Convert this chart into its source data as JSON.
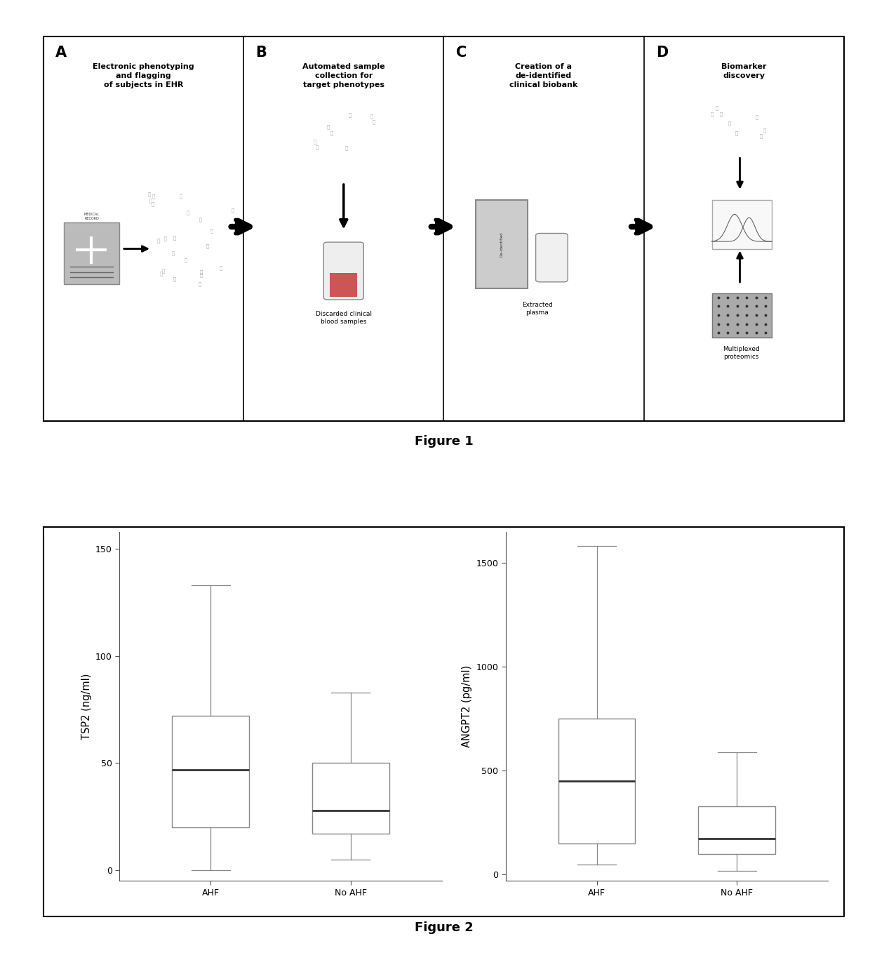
{
  "fig1": {
    "panels": [
      "A",
      "B",
      "C",
      "D"
    ],
    "panel_titles": [
      "Electronic phenotyping\nand flagging\nof subjects in EHR",
      "Automated sample\ncollection for\ntarget phenotypes",
      "Creation of a\nde-identified\nclinical biobank",
      "Biomarker\ndiscovery"
    ],
    "figure_label": "Figure 1",
    "bg_color": "#f0f0f0"
  },
  "fig2": {
    "tsp2": {
      "AHF": {
        "whislo": 0,
        "q1": 20,
        "med": 47,
        "q3": 72,
        "whishi": 133,
        "fliers": []
      },
      "NoAHF": {
        "whislo": 5,
        "q1": 17,
        "med": 28,
        "q3": 50,
        "whishi": 83,
        "fliers": []
      },
      "ylabel": "TSP2 (ng/ml)",
      "yticks": [
        0,
        50,
        100,
        150
      ],
      "ylim": [
        -5,
        158
      ]
    },
    "angpt2": {
      "AHF": {
        "whislo": 50,
        "q1": 150,
        "med": 450,
        "q3": 750,
        "whishi": 1580,
        "fliers": []
      },
      "NoAHF": {
        "whislo": 20,
        "q1": 100,
        "med": 175,
        "q3": 330,
        "whishi": 590,
        "fliers": []
      },
      "ylabel": "ANGPT2 (pg/ml)",
      "yticks": [
        0,
        500,
        1000,
        1500
      ],
      "ylim": [
        -30,
        1650
      ]
    },
    "figure_label": "Figure 2",
    "box_color": "white",
    "box_edge_color": "#888888",
    "median_color": "#333333",
    "whisker_color": "#888888",
    "cap_color": "#888888"
  }
}
